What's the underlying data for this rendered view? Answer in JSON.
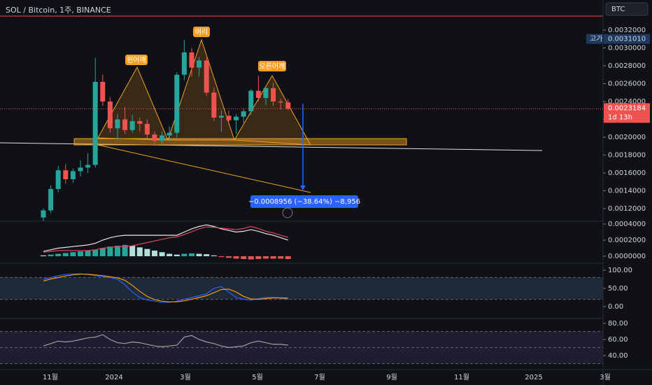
{
  "header": {
    "title": "SOL / Bitcoin, 1주, BINANCE",
    "currency": "BTC"
  },
  "chart_data": [
    {
      "type": "candlestick",
      "up_color": "#26a69a",
      "down_color": "#ef5350",
      "open": [
        0.0011,
        0.00118,
        0.00142,
        0.00163,
        0.00153,
        0.00162,
        0.00166,
        0.00169,
        0.00262,
        0.0024,
        0.0021,
        0.0022,
        0.00208,
        0.00218,
        0.00215,
        0.00203,
        0.00196,
        0.00202,
        0.00205,
        0.0027,
        0.00295,
        0.00278,
        0.00286,
        0.0025,
        0.00222,
        0.00224,
        0.00219,
        0.00223,
        0.00229,
        0.00252,
        0.00244,
        0.00255,
        0.0024,
        0.00239
      ],
      "high": [
        0.0012,
        0.00146,
        0.00168,
        0.0017,
        0.00165,
        0.00174,
        0.00182,
        0.00289,
        0.0027,
        0.00245,
        0.00226,
        0.00234,
        0.00225,
        0.00222,
        0.0022,
        0.00206,
        0.00206,
        0.00212,
        0.00273,
        0.00309,
        0.003,
        0.0029,
        0.00289,
        0.00256,
        0.0023,
        0.0023,
        0.00226,
        0.00232,
        0.00254,
        0.00269,
        0.00256,
        0.00261,
        0.00243,
        0.00243
      ],
      "low": [
        0.00106,
        0.00115,
        0.00138,
        0.00148,
        0.00149,
        0.00156,
        0.0016,
        0.00166,
        0.00235,
        0.00205,
        0.00196,
        0.00204,
        0.00205,
        0.00206,
        0.00199,
        0.00191,
        0.00192,
        0.00195,
        0.002,
        0.00264,
        0.00268,
        0.00268,
        0.00246,
        0.00218,
        0.00206,
        0.00214,
        0.00204,
        0.00216,
        0.00225,
        0.0024,
        0.00236,
        0.00235,
        0.00231,
        0.0023
      ],
      "close": [
        0.00118,
        0.00142,
        0.00163,
        0.00153,
        0.00162,
        0.00166,
        0.00169,
        0.00262,
        0.0024,
        0.0021,
        0.0022,
        0.00208,
        0.00218,
        0.00215,
        0.00203,
        0.00196,
        0.00202,
        0.00205,
        0.0027,
        0.00295,
        0.00278,
        0.00286,
        0.0025,
        0.00222,
        0.00224,
        0.00219,
        0.00223,
        0.00229,
        0.00252,
        0.00244,
        0.00255,
        0.0024,
        0.00239,
        0.0023184
      ],
      "ylim": [
        0.001067,
        0.003349
      ],
      "yticks": [
        {
          "value": 0.0032,
          "label": "0.0032000"
        },
        {
          "value": 0.003,
          "label": "0.0030000"
        },
        {
          "value": 0.0028,
          "label": "0.0028000"
        },
        {
          "value": 0.0026,
          "label": "0.0026000"
        },
        {
          "value": 0.0024,
          "label": "0.0024000"
        },
        {
          "value": 0.0022,
          "label": "0.0022000"
        },
        {
          "value": 0.002,
          "label": "0.0020000"
        },
        {
          "value": 0.0018,
          "label": "0.0018000"
        },
        {
          "value": 0.0016,
          "label": "0.0016000"
        },
        {
          "value": 0.0014,
          "label": "0.0014000"
        },
        {
          "value": 0.0012,
          "label": "0.0012000"
        }
      ],
      "xticks": [
        "11월",
        "2024",
        "3월",
        "5월",
        "7월",
        "9월",
        "11월",
        "2025",
        "3월"
      ],
      "last_price": {
        "value": 0.0023184,
        "label": "0.0023184"
      },
      "countdown": "1d 13h",
      "high_marker": {
        "tag": "고가",
        "value": 0.003101,
        "label": "0.0031010"
      },
      "annotations": {
        "left_shoulder": "왼어깨",
        "head": "머리",
        "right_shoulder": "오른어깨",
        "measure": "−0.0008956 (−38.64%) −8,956"
      }
    },
    {
      "type": "macd",
      "ylim": [
        -7.8e-05,
        0.000435
      ],
      "yticks": [
        {
          "value": 0.0004,
          "label": "0.0004000"
        },
        {
          "value": 0.0002,
          "label": "0.0002000"
        },
        {
          "value": 0,
          "label": "0.0000000"
        }
      ],
      "macd_color": "#e6e6e6",
      "signal_color": "#e0475b",
      "hist_up_color": "#b2dfdb",
      "hist_strong_color": "#26a69a",
      "hist_down_color": "#ef5350",
      "macd": [
        6e-05,
        8e-05,
        0.0001,
        0.00011,
        0.00012,
        0.00013,
        0.00014,
        0.00016,
        0.0002,
        0.00023,
        0.00025,
        0.00026,
        0.00026,
        0.00026,
        0.00026,
        0.00026,
        0.00026,
        0.00026,
        0.00026,
        0.0003,
        0.00034,
        0.00037,
        0.00039,
        0.00037,
        0.00034,
        0.00032,
        0.0003,
        0.00031,
        0.00033,
        0.00031,
        0.00028,
        0.00026,
        0.00023,
        0.0002
      ],
      "signal": [
        5e-05,
        6e-05,
        7e-05,
        7e-05,
        7e-05,
        7e-05,
        7e-05,
        8e-05,
        0.0001,
        0.00011,
        0.00012,
        0.00012,
        0.00013,
        0.00015,
        0.00017,
        0.00019,
        0.00021,
        0.00023,
        0.00024,
        0.00027,
        0.000305,
        0.00034,
        0.000365,
        0.00036,
        0.00035,
        0.00034,
        0.00033,
        0.000345,
        0.00037,
        0.000345,
        0.00031,
        0.00029,
        0.00026,
        0.000235
      ],
      "histogram": [
        1e-05,
        2e-05,
        3e-05,
        4e-05,
        5e-05,
        6e-05,
        7e-05,
        8e-05,
        0.0001,
        0.00012,
        0.00013,
        0.00014,
        0.00013,
        0.00011,
        9e-05,
        7e-05,
        5e-05,
        3e-05,
        2e-05,
        3e-05,
        3.5e-05,
        3e-05,
        2.5e-05,
        1e-05,
        -1e-05,
        -2e-05,
        -3e-05,
        -3.5e-05,
        -4e-05,
        -3.5e-05,
        -3e-05,
        -3e-05,
        -3e-05,
        -3.5e-05
      ]
    },
    {
      "type": "line",
      "ylim": [
        -32.7,
        119.2
      ],
      "yticks": [
        {
          "value": 100,
          "label": "100.00"
        },
        {
          "value": 50,
          "label": "50.00"
        },
        {
          "value": 0,
          "label": "0.00"
        }
      ],
      "bands": [
        80,
        20
      ],
      "band_fill": "#1e2a3a",
      "series": [
        {
          "color": "#2962ff",
          "values": [
            75,
            80,
            85,
            88,
            90,
            90,
            88,
            85,
            82,
            80,
            75,
            60,
            40,
            25,
            18,
            15,
            12,
            12,
            15,
            20,
            25,
            30,
            35,
            50,
            55,
            40,
            25,
            20,
            18,
            22,
            25,
            25,
            23,
            20
          ]
        },
        {
          "color": "#ff9800",
          "values": [
            70,
            76,
            80,
            84,
            87,
            89,
            89,
            87,
            85,
            82,
            79,
            72,
            58,
            42,
            28,
            19,
            15,
            13,
            13,
            16,
            20,
            25,
            30,
            38,
            47,
            48,
            40,
            28,
            21,
            20,
            22,
            24,
            24,
            23
          ]
        }
      ]
    },
    {
      "type": "line",
      "ylim": [
        23.5,
        86.1
      ],
      "yticks": [
        {
          "value": 80,
          "label": "80.00"
        },
        {
          "value": 60,
          "label": "60.00"
        },
        {
          "value": 40,
          "label": "40.00"
        }
      ],
      "bands": [
        70,
        50,
        30
      ],
      "band_fill": "#221c33",
      "series": [
        {
          "color": "#9e9e9e",
          "values": [
            52,
            55,
            58,
            57,
            58,
            60,
            62,
            63,
            66,
            60,
            56,
            55,
            57,
            56,
            54,
            52,
            51,
            52,
            53,
            63,
            65,
            60,
            57,
            55,
            52,
            50,
            51,
            52,
            56,
            58,
            56,
            54,
            54,
            53
          ]
        }
      ]
    }
  ]
}
